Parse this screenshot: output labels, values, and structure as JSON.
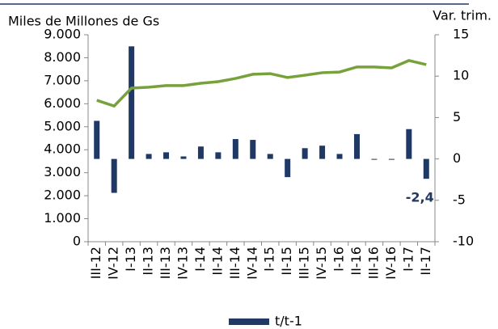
{
  "chart_data": {
    "type": "bar-line",
    "y_label": "Miles de Millones de Gs",
    "y2_label": "Var. trim.",
    "categories": [
      "III-12",
      "IV-12",
      "I-13",
      "II-13",
      "III-13",
      "IV-13",
      "I-14",
      "II-14",
      "III-14",
      "IV-14",
      "I-15",
      "II-15",
      "III-15",
      "IV-15",
      "I-16",
      "II-16",
      "III-16",
      "IV-16",
      "I-17",
      "II-17"
    ],
    "series": [
      {
        "name": "t/t-1",
        "type": "bar",
        "axis": "y2",
        "color": "#1f3864",
        "values": [
          4.6,
          -4.1,
          13.6,
          0.6,
          0.8,
          0.3,
          1.5,
          0.8,
          2.4,
          2.3,
          0.6,
          -2.2,
          1.3,
          1.6,
          0.6,
          3.0,
          -0.1,
          -0.1,
          3.6,
          -2.4
        ],
        "value_labels": [
          null,
          null,
          null,
          null,
          null,
          null,
          null,
          null,
          null,
          null,
          null,
          null,
          null,
          null,
          null,
          null,
          null,
          null,
          null,
          "-2,4"
        ]
      },
      {
        "type": "line",
        "axis": "y",
        "color": "#77a13a",
        "values": [
          6150,
          5900,
          6680,
          6720,
          6790,
          6790,
          6890,
          6960,
          7100,
          7280,
          7310,
          7140,
          7240,
          7350,
          7380,
          7600,
          7600,
          7560,
          7880,
          7700
        ]
      }
    ],
    "ylim": [
      0,
      9000
    ],
    "yticks": [
      {
        "value": 0,
        "label": "0"
      },
      {
        "value": 1000,
        "label": "1.000"
      },
      {
        "value": 2000,
        "label": "2.000"
      },
      {
        "value": 3000,
        "label": "3.000"
      },
      {
        "value": 4000,
        "label": "4.000"
      },
      {
        "value": 5000,
        "label": "5.000"
      },
      {
        "value": 6000,
        "label": "6.000"
      },
      {
        "value": 7000,
        "label": "7.000"
      },
      {
        "value": 8000,
        "label": "8.000"
      },
      {
        "value": 9000,
        "label": "9.000"
      }
    ],
    "y2lim": [
      -10,
      15
    ],
    "y2ticks": [
      -10,
      -5,
      0,
      5,
      10,
      15
    ],
    "legend": "bottom"
  }
}
